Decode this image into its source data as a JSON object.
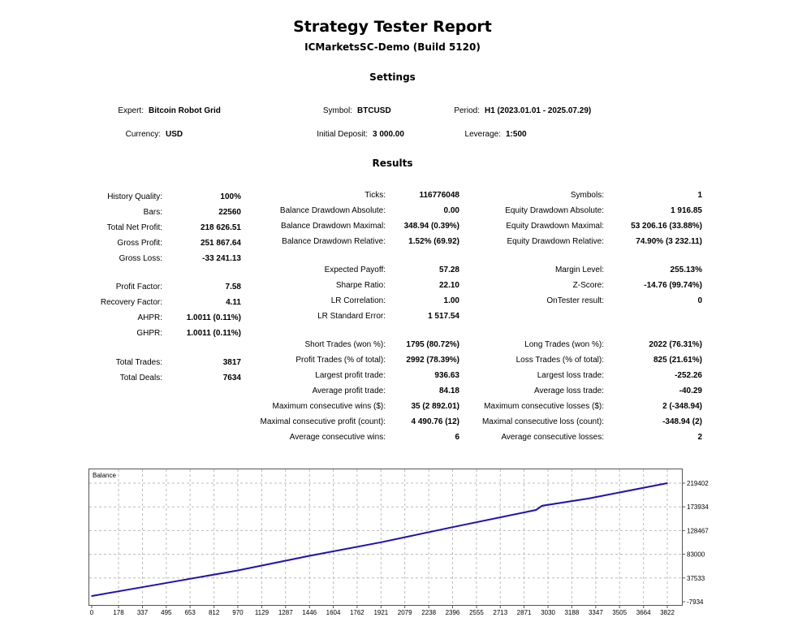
{
  "header": {
    "title": "Strategy Tester Report",
    "subtitle": "ICMarketsSC-Demo (Build 5120)",
    "settings_title": "Settings",
    "results_title": "Results"
  },
  "settings": [
    {
      "label": "Expert:",
      "value": "Bitcoin Robot Grid"
    },
    {
      "label": "Symbol:",
      "value": "BTCUSD"
    },
    {
      "label": "Period:",
      "value": "H1 (2023.01.01 - 2025.07.29)"
    },
    {
      "label": "Currency:",
      "value": "USD"
    },
    {
      "label": "Initial Deposit:",
      "value": "3 000.00"
    },
    {
      "label": "Leverage:",
      "value": "1:500"
    }
  ],
  "results": {
    "left": [
      {
        "label": "History Quality:",
        "value": "100%"
      },
      {
        "label": "Bars:",
        "value": "22560"
      },
      {
        "label": "Total Net Profit:",
        "value": "218 626.51"
      },
      {
        "label": "Gross Profit:",
        "value": "251 867.64"
      },
      {
        "label": "Gross Loss:",
        "value": "-33 241.13"
      },
      {
        "label": "Profit Factor:",
        "value": "7.58"
      },
      {
        "label": "Recovery Factor:",
        "value": "4.11"
      },
      {
        "label": "AHPR:",
        "value": "1.0011 (0.11%)"
      },
      {
        "label": "GHPR:",
        "value": "1.0011 (0.11%)"
      },
      {
        "label": "Total Trades:",
        "value": "3817"
      },
      {
        "label": "Total Deals:",
        "value": "7634"
      }
    ],
    "middle": [
      {
        "label": "Ticks:",
        "value": "116776048"
      },
      {
        "label": "Balance Drawdown Absolute:",
        "value": "0.00"
      },
      {
        "label": "Balance Drawdown Maximal:",
        "value": "348.94 (0.39%)"
      },
      {
        "label": "Balance Drawdown Relative:",
        "value": "1.52% (69.92)"
      },
      {
        "label": "Expected Payoff:",
        "value": "57.28"
      },
      {
        "label": "Sharpe Ratio:",
        "value": "22.10"
      },
      {
        "label": "LR Correlation:",
        "value": "1.00"
      },
      {
        "label": "LR Standard Error:",
        "value": "1 517.54"
      },
      {
        "label": "Short Trades (won %):",
        "value": "1795 (80.72%)"
      },
      {
        "label": "Profit Trades (% of total):",
        "value": "2992 (78.39%)"
      },
      {
        "label": "Largest profit trade:",
        "value": "936.63"
      },
      {
        "label": "Average profit trade:",
        "value": "84.18"
      },
      {
        "label": "Maximum consecutive wins ($):",
        "value": "35 (2 892.01)"
      },
      {
        "label": "Maximal consecutive profit (count):",
        "value": "4 490.76 (12)"
      },
      {
        "label": "Average consecutive wins:",
        "value": "6"
      }
    ],
    "right": [
      {
        "label": "Symbols:",
        "value": "1"
      },
      {
        "label": "Equity Drawdown Absolute:",
        "value": "1 916.85"
      },
      {
        "label": "Equity Drawdown Maximal:",
        "value": "53 206.16 (33.88%)"
      },
      {
        "label": "Equity Drawdown Relative:",
        "value": "74.90% (3 232.11)"
      },
      {
        "label": "Margin Level:",
        "value": "255.13%"
      },
      {
        "label": "Z-Score:",
        "value": "-14.76 (99.74%)"
      },
      {
        "label": "OnTester result:",
        "value": "0"
      },
      {
        "label": "Long Trades (won %):",
        "value": "2022 (76.31%)"
      },
      {
        "label": "Loss Trades (% of total):",
        "value": "825 (21.61%)"
      },
      {
        "label": "Largest loss trade:",
        "value": "-252.26"
      },
      {
        "label": "Average loss trade:",
        "value": "-40.29"
      },
      {
        "label": "Maximum consecutive losses ($):",
        "value": "2 (-348.94)"
      },
      {
        "label": "Maximal consecutive loss (count):",
        "value": "-348.94 (2)"
      },
      {
        "label": "Average consecutive losses:",
        "value": "2"
      }
    ]
  },
  "chart_data": {
    "type": "line",
    "title": "Balance",
    "x_ticks": [
      0,
      178,
      337,
      495,
      653,
      812,
      970,
      1129,
      1287,
      1446,
      1604,
      1762,
      1921,
      2079,
      2238,
      2396,
      2555,
      2713,
      2871,
      3030,
      3188,
      3347,
      3505,
      3664,
      3822
    ],
    "y_ticks": [
      -7934,
      37533,
      83000,
      128467,
      173934,
      219402
    ],
    "xlim": [
      0,
      3822
    ],
    "ylim": [
      -7934,
      219402
    ],
    "grid": true,
    "line_color": "#1c10b8",
    "series": [
      {
        "x": [
          0,
          337,
          970,
          1446,
          1921,
          2396,
          2950,
          2990,
          3300,
          3822
        ],
        "y": [
          3000,
          20000,
          52000,
          80000,
          106000,
          135000,
          168000,
          176000,
          190000,
          219402
        ]
      }
    ]
  }
}
